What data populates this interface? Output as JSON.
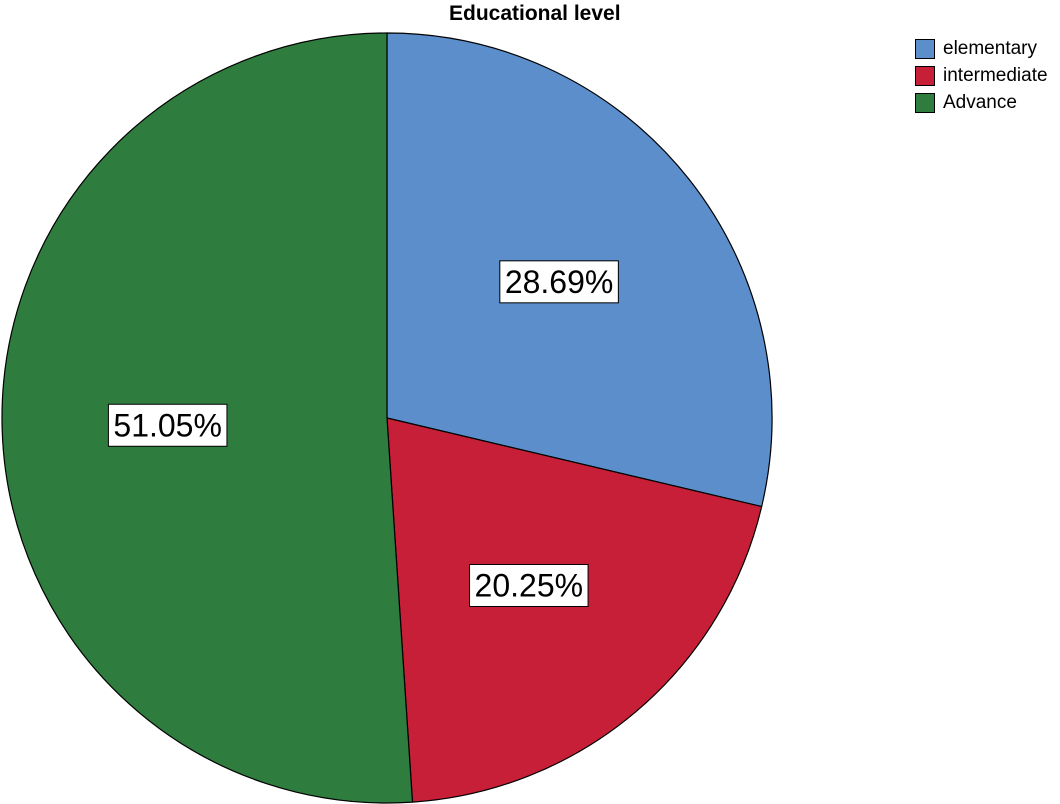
{
  "chart_data": {
    "type": "pie",
    "title": "Educational level",
    "start_angle_deg": 0,
    "direction": "clockwise",
    "legend_position": "top-right",
    "slices": [
      {
        "label": "elementary",
        "value": 28.69,
        "display": "28.69%",
        "color": "#5b8ecb"
      },
      {
        "label": "intermediate",
        "value": 20.25,
        "display": "20.25%",
        "color": "#c71f37"
      },
      {
        "label": "Advance",
        "value": 51.05,
        "display": "51.05%",
        "color": "#2e7d3e"
      }
    ]
  }
}
